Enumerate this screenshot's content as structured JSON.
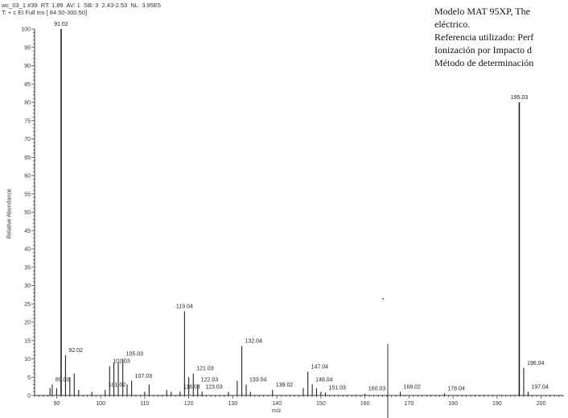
{
  "header": {
    "line1": "wc_03_1 #39  RT: 1.89  AV: 1  SB: 3  2.43-2.53  NL: 3.95E5",
    "line2": "T: + c EI Full ms [ 84.50-300.50]"
  },
  "description": {
    "lines": [
      "Modelo MAT 95XP, The",
      "eléctrico.",
      "Referencia utilizado: Perf",
      "Ionización por  Impacto d",
      "Método de determinación"
    ]
  },
  "chart_data": {
    "type": "bar",
    "title": "",
    "xlabel": "m/z",
    "ylabel": "Relative Abundance",
    "xlim": [
      85,
      205
    ],
    "ylim": [
      0,
      100
    ],
    "x_ticks": [
      90,
      100,
      110,
      120,
      130,
      140,
      150,
      160,
      170,
      180,
      190,
      200
    ],
    "y_ticks": [
      0,
      5,
      10,
      15,
      20,
      25,
      30,
      35,
      40,
      45,
      50,
      55,
      60,
      65,
      70,
      75,
      80,
      85,
      90,
      95,
      100
    ],
    "grid": false,
    "peaks": [
      {
        "mz": 88.5,
        "intensity": 2
      },
      {
        "mz": 89.0,
        "intensity": 3,
        "label": "89.00"
      },
      {
        "mz": 90.0,
        "intensity": 2
      },
      {
        "mz": 91.02,
        "intensity": 100,
        "label": "91.02"
      },
      {
        "mz": 92.02,
        "intensity": 11,
        "label": "92.02"
      },
      {
        "mz": 93.0,
        "intensity": 5
      },
      {
        "mz": 94.0,
        "intensity": 6
      },
      {
        "mz": 95.0,
        "intensity": 1.5
      },
      {
        "mz": 98.0,
        "intensity": 1
      },
      {
        "mz": 101.02,
        "intensity": 1.5,
        "label": "101.02"
      },
      {
        "mz": 102.03,
        "intensity": 8,
        "label": "102.03"
      },
      {
        "mz": 103.0,
        "intensity": 9
      },
      {
        "mz": 104.0,
        "intensity": 9
      },
      {
        "mz": 105.03,
        "intensity": 10,
        "label": "105.03"
      },
      {
        "mz": 106.0,
        "intensity": 3
      },
      {
        "mz": 107.03,
        "intensity": 4,
        "label": "107.03"
      },
      {
        "mz": 110.0,
        "intensity": 1
      },
      {
        "mz": 111.0,
        "intensity": 3
      },
      {
        "mz": 115.0,
        "intensity": 1.5
      },
      {
        "mz": 116.0,
        "intensity": 1
      },
      {
        "mz": 118.03,
        "intensity": 1,
        "label": "118.03"
      },
      {
        "mz": 119.04,
        "intensity": 23,
        "label": "119.04"
      },
      {
        "mz": 120.0,
        "intensity": 5
      },
      {
        "mz": 121.03,
        "intensity": 6,
        "label": "121.03"
      },
      {
        "mz": 122.03,
        "intensity": 3,
        "label": "122.03"
      },
      {
        "mz": 123.03,
        "intensity": 1,
        "label": "123.03"
      },
      {
        "mz": 129.0,
        "intensity": 1
      },
      {
        "mz": 131.0,
        "intensity": 4
      },
      {
        "mz": 132.04,
        "intensity": 13.5,
        "label": "132.04"
      },
      {
        "mz": 133.04,
        "intensity": 3,
        "label": "133.04"
      },
      {
        "mz": 134.0,
        "intensity": 1
      },
      {
        "mz": 139.02,
        "intensity": 1.5,
        "label": "139.02"
      },
      {
        "mz": 146.0,
        "intensity": 2
      },
      {
        "mz": 147.04,
        "intensity": 6.5,
        "label": "147.04"
      },
      {
        "mz": 148.04,
        "intensity": 3,
        "label": "148.04"
      },
      {
        "mz": 149.0,
        "intensity": 2
      },
      {
        "mz": 150.0,
        "intensity": 1
      },
      {
        "mz": 151.03,
        "intensity": 0.8,
        "label": "151.03"
      },
      {
        "mz": 160.03,
        "intensity": 0.5,
        "label": "160.03"
      },
      {
        "mz": 168.02,
        "intensity": 1,
        "label": "168.02"
      },
      {
        "mz": 178.04,
        "intensity": 0.6,
        "label": "178.04"
      },
      {
        "mz": 195.03,
        "intensity": 80,
        "label": "195.03"
      },
      {
        "mz": 196.04,
        "intensity": 7.5,
        "label": "196.04"
      },
      {
        "mz": 197.04,
        "intensity": 1,
        "label": "197.04"
      }
    ]
  }
}
